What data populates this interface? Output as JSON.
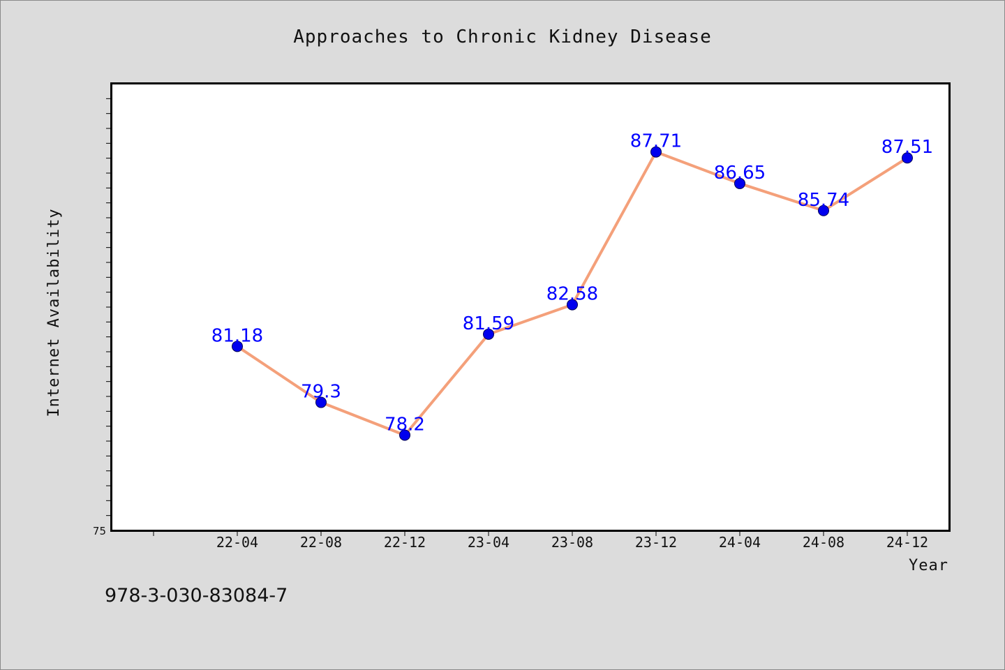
{
  "chart_data": {
    "type": "line",
    "title": "Approaches to Chronic Kidney Disease",
    "xlabel": "Year",
    "ylabel": "Internet Availability",
    "categories": [
      "22-04",
      "22-08",
      "22-12",
      "23-04",
      "23-08",
      "23-12",
      "24-04",
      "24-08",
      "24-12"
    ],
    "series": [
      {
        "values": [
          81.18,
          79.3,
          78.2,
          81.59,
          82.58,
          87.71,
          86.65,
          85.74,
          87.51
        ],
        "labels": [
          "81.18",
          "79.3",
          "78.2",
          "81.59",
          "82.58",
          "87.71",
          "86.65",
          "85.74",
          "87.51"
        ],
        "line_color": "#f4a07a",
        "marker_color": "#0000ee"
      }
    ],
    "ylim": [
      75,
      90
    ],
    "y_min_label": "75",
    "grid": false,
    "legend": "none"
  },
  "footnote": "978-3-030-83084-7"
}
